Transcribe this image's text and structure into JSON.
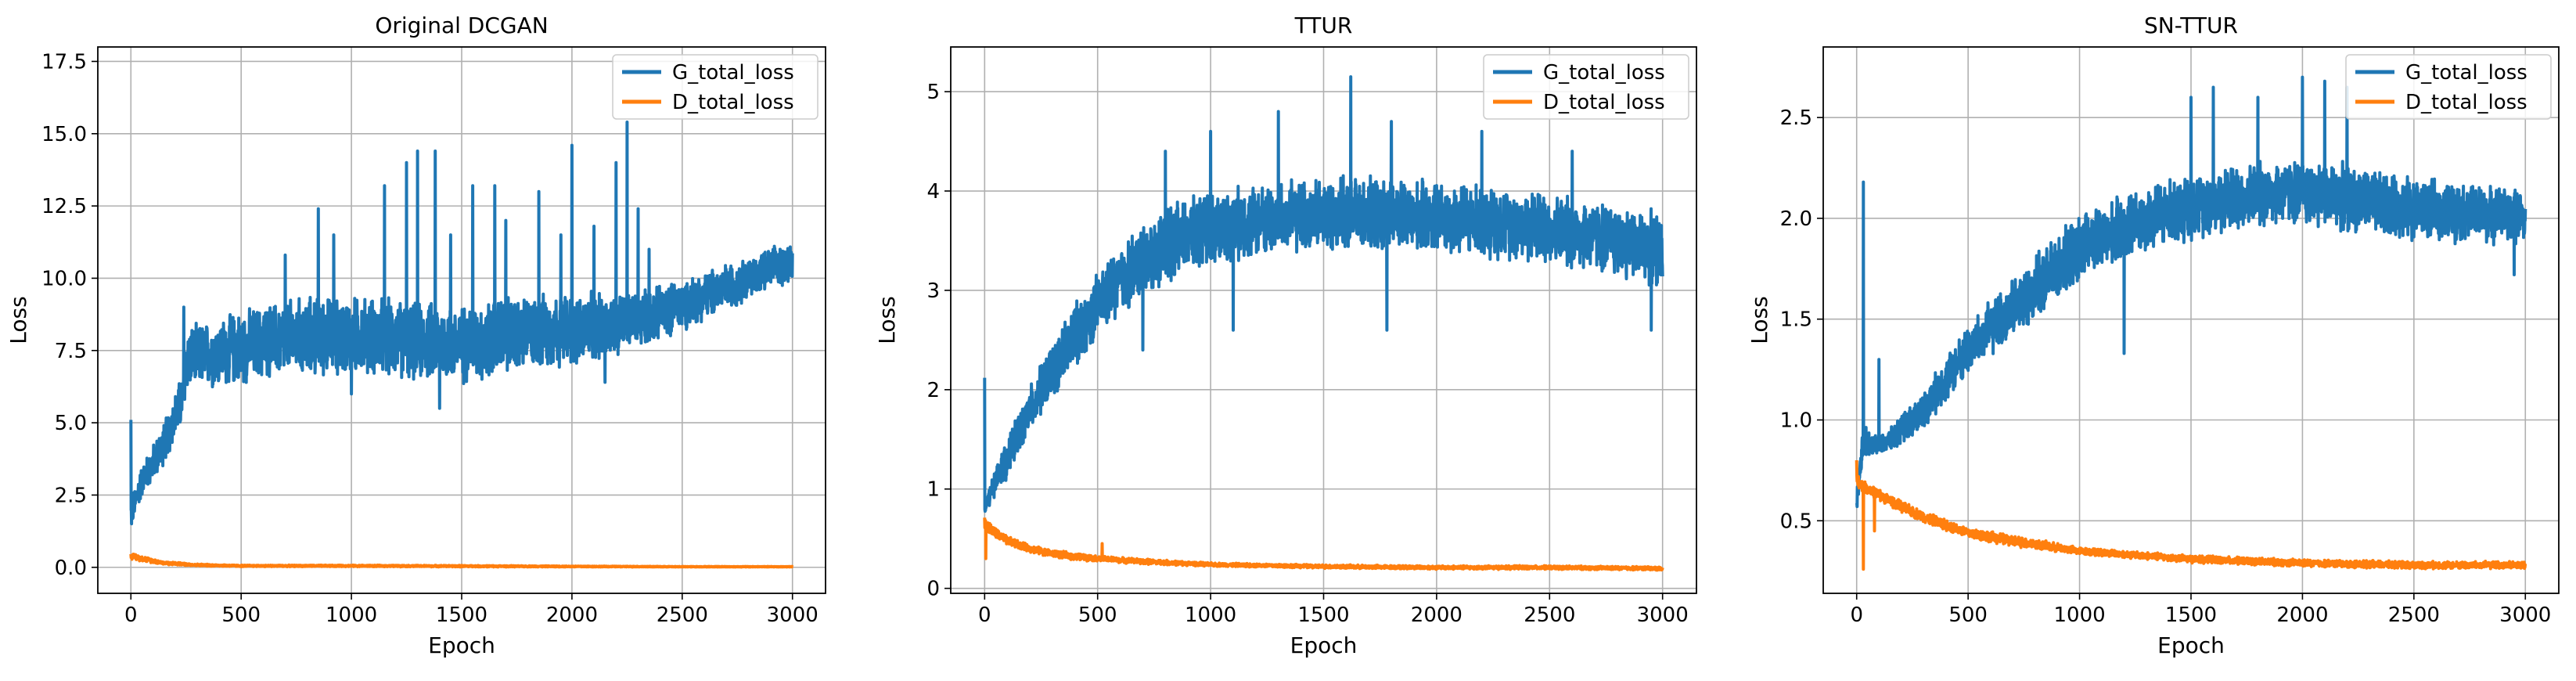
{
  "colors": {
    "g_series": "#1f77b4",
    "d_series": "#ff7f0e",
    "grid": "#b0b0b0",
    "axes": "#000000"
  },
  "chart_data": [
    {
      "type": "line",
      "title": "Original DCGAN",
      "xlabel": "Epoch",
      "ylabel": "Loss",
      "xlim": [
        -150,
        3150
      ],
      "ylim": [
        -0.9,
        18.0
      ],
      "xticks": [
        0,
        500,
        1000,
        1500,
        2000,
        2500,
        3000
      ],
      "xtick_labels": [
        "0",
        "500",
        "1000",
        "1500",
        "2000",
        "2500",
        "3000"
      ],
      "yticks": [
        0.0,
        2.5,
        5.0,
        7.5,
        10.0,
        12.5,
        15.0,
        17.5
      ],
      "ytick_labels": [
        "0.0",
        "2.5",
        "5.0",
        "7.5",
        "10.0",
        "12.5",
        "15.0",
        "17.5"
      ],
      "grid": true,
      "legend_position": "top-right",
      "series": [
        {
          "name": "G_total_loss",
          "color": "#1f77b4",
          "x": [
            0,
            50,
            100,
            150,
            200,
            240,
            250,
            300,
            400,
            500,
            600,
            700,
            800,
            900,
            1000,
            1100,
            1200,
            1300,
            1400,
            1500,
            1600,
            1700,
            1800,
            1900,
            2000,
            2100,
            2200,
            2300,
            2400,
            2500,
            2600,
            2700,
            2800,
            2900,
            3000
          ],
          "mean": [
            1.8,
            3.0,
            3.6,
            4.3,
            5.2,
            6.0,
            7.2,
            7.3,
            7.4,
            7.6,
            7.8,
            7.9,
            8.0,
            8.0,
            8.0,
            8.0,
            7.9,
            7.8,
            7.8,
            7.7,
            7.8,
            8.0,
            8.1,
            8.2,
            8.2,
            8.3,
            8.4,
            8.6,
            8.8,
            9.1,
            9.4,
            9.7,
            10.0,
            10.3,
            10.6
          ],
          "spread": [
            0.6,
            0.6,
            0.7,
            0.8,
            0.9,
            1.0,
            1.2,
            1.2,
            1.3,
            1.4,
            1.4,
            1.5,
            1.5,
            1.5,
            1.5,
            1.5,
            1.5,
            1.5,
            1.5,
            1.5,
            1.5,
            1.5,
            1.4,
            1.4,
            1.4,
            1.3,
            1.2,
            1.1,
            1.0,
            1.0,
            0.9,
            0.9,
            0.8,
            0.8,
            0.8
          ],
          "spikes": [
            [
              0,
              5.1
            ],
            [
              240,
              9.0
            ],
            [
              700,
              10.8
            ],
            [
              850,
              12.4
            ],
            [
              920,
              11.5
            ],
            [
              1150,
              13.2
            ],
            [
              1250,
              14.0
            ],
            [
              1300,
              14.4
            ],
            [
              1380,
              14.4
            ],
            [
              1450,
              11.5
            ],
            [
              1550,
              13.2
            ],
            [
              1650,
              13.2
            ],
            [
              1700,
              12.0
            ],
            [
              1850,
              13.0
            ],
            [
              1950,
              11.5
            ],
            [
              2000,
              14.6
            ],
            [
              2100,
              11.8
            ],
            [
              2150,
              13.2
            ],
            [
              2200,
              14.0
            ],
            [
              2250,
              15.4
            ],
            [
              2300,
              12.4
            ],
            [
              2350,
              11.0
            ]
          ],
          "dips": [
            [
              1000,
              6.0
            ],
            [
              1400,
              5.5
            ],
            [
              2150,
              6.4
            ]
          ]
        },
        {
          "name": "D_total_loss",
          "color": "#ff7f0e",
          "x": [
            0,
            50,
            150,
            300,
            500,
            1000,
            1500,
            2000,
            2500,
            3000
          ],
          "mean": [
            0.4,
            0.3,
            0.15,
            0.08,
            0.05,
            0.05,
            0.04,
            0.03,
            0.02,
            0.02
          ],
          "spread": [
            0.12,
            0.1,
            0.06,
            0.04,
            0.03,
            0.03,
            0.03,
            0.02,
            0.01,
            0.01
          ],
          "spikes": [
            [
              10,
              0.45
            ]
          ],
          "dips": []
        }
      ]
    },
    {
      "type": "line",
      "title": "TTUR",
      "xlabel": "Epoch",
      "ylabel": "Loss",
      "xlim": [
        -150,
        3150
      ],
      "ylim": [
        -0.05,
        5.45
      ],
      "xticks": [
        0,
        500,
        1000,
        1500,
        2000,
        2500,
        3000
      ],
      "xtick_labels": [
        "0",
        "500",
        "1000",
        "1500",
        "2000",
        "2500",
        "3000"
      ],
      "yticks": [
        0,
        1,
        2,
        3,
        4,
        5
      ],
      "ytick_labels": [
        "0",
        "1",
        "2",
        "3",
        "4",
        "5"
      ],
      "grid": true,
      "legend_position": "top-right",
      "series": [
        {
          "name": "G_total_loss",
          "color": "#1f77b4",
          "x": [
            0,
            50,
            100,
            200,
            300,
            400,
            500,
            600,
            700,
            800,
            900,
            1000,
            1100,
            1200,
            1300,
            1400,
            1500,
            1600,
            1700,
            1800,
            1900,
            2000,
            2100,
            2200,
            2300,
            2400,
            2500,
            2600,
            2700,
            2800,
            2900,
            3000
          ],
          "mean": [
            0.8,
            1.1,
            1.3,
            1.8,
            2.2,
            2.55,
            2.85,
            3.1,
            3.3,
            3.45,
            3.55,
            3.62,
            3.66,
            3.7,
            3.72,
            3.74,
            3.76,
            3.76,
            3.76,
            3.75,
            3.74,
            3.73,
            3.72,
            3.7,
            3.68,
            3.65,
            3.62,
            3.58,
            3.55,
            3.5,
            3.45,
            3.4
          ],
          "spread": [
            0.1,
            0.15,
            0.2,
            0.25,
            0.3,
            0.35,
            0.35,
            0.4,
            0.4,
            0.4,
            0.4,
            0.4,
            0.4,
            0.4,
            0.4,
            0.4,
            0.4,
            0.4,
            0.4,
            0.4,
            0.4,
            0.4,
            0.4,
            0.4,
            0.4,
            0.4,
            0.4,
            0.4,
            0.4,
            0.4,
            0.4,
            0.4
          ],
          "spikes": [
            [
              0,
              2.12
            ],
            [
              800,
              4.4
            ],
            [
              1000,
              4.6
            ],
            [
              1300,
              4.8
            ],
            [
              1620,
              5.15
            ],
            [
              1800,
              4.7
            ],
            [
              2200,
              4.6
            ],
            [
              2600,
              4.4
            ]
          ],
          "dips": [
            [
              700,
              2.4
            ],
            [
              1100,
              2.6
            ],
            [
              1780,
              2.6
            ],
            [
              2950,
              2.6
            ]
          ]
        },
        {
          "name": "D_total_loss",
          "color": "#ff7f0e",
          "x": [
            0,
            50,
            100,
            200,
            300,
            400,
            500,
            700,
            1000,
            1500,
            2000,
            2500,
            3000
          ],
          "mean": [
            0.65,
            0.55,
            0.48,
            0.4,
            0.35,
            0.32,
            0.3,
            0.27,
            0.24,
            0.22,
            0.21,
            0.21,
            0.2
          ],
          "spread": [
            0.08,
            0.06,
            0.05,
            0.04,
            0.04,
            0.04,
            0.03,
            0.03,
            0.02,
            0.02,
            0.02,
            0.02,
            0.02
          ],
          "spikes": [
            [
              5,
              0.72
            ],
            [
              520,
              0.45
            ]
          ],
          "dips": [
            [
              5,
              0.3
            ]
          ]
        }
      ]
    },
    {
      "type": "line",
      "title": "SN-TTUR",
      "xlabel": "Epoch",
      "ylabel": "Loss",
      "xlim": [
        -150,
        3150
      ],
      "ylim": [
        0.14,
        2.85
      ],
      "xticks": [
        0,
        500,
        1000,
        1500,
        2000,
        2500,
        3000
      ],
      "xtick_labels": [
        "0",
        "500",
        "1000",
        "1500",
        "2000",
        "2500",
        "3000"
      ],
      "yticks": [
        0.5,
        1.0,
        1.5,
        2.0,
        2.5
      ],
      "ytick_labels": [
        "0.5",
        "1.0",
        "1.5",
        "2.0",
        "2.5"
      ],
      "grid": true,
      "legend_position": "top-right",
      "series": [
        {
          "name": "G_total_loss",
          "color": "#1f77b4",
          "x": [
            0,
            30,
            60,
            100,
            150,
            200,
            300,
            400,
            500,
            600,
            700,
            800,
            900,
            1000,
            1100,
            1200,
            1300,
            1400,
            1500,
            1600,
            1700,
            1800,
            1900,
            2000,
            2100,
            2200,
            2300,
            2400,
            2500,
            2600,
            2700,
            2800,
            2900,
            3000
          ],
          "mean": [
            0.6,
            0.9,
            0.88,
            0.87,
            0.9,
            0.95,
            1.05,
            1.2,
            1.35,
            1.45,
            1.55,
            1.65,
            1.75,
            1.85,
            1.9,
            1.95,
            2.0,
            2.03,
            2.06,
            2.08,
            2.1,
            2.12,
            2.13,
            2.13,
            2.12,
            2.1,
            2.08,
            2.06,
            2.05,
            2.04,
            2.03,
            2.02,
            2.02,
            2.0
          ],
          "spread": [
            0.05,
            0.1,
            0.05,
            0.05,
            0.06,
            0.08,
            0.1,
            0.12,
            0.14,
            0.15,
            0.16,
            0.17,
            0.18,
            0.18,
            0.18,
            0.18,
            0.18,
            0.18,
            0.18,
            0.18,
            0.18,
            0.18,
            0.18,
            0.18,
            0.18,
            0.18,
            0.18,
            0.17,
            0.17,
            0.16,
            0.16,
            0.16,
            0.15,
            0.15
          ],
          "spikes": [
            [
              30,
              2.18
            ],
            [
              100,
              1.3
            ],
            [
              1500,
              2.6
            ],
            [
              1600,
              2.65
            ],
            [
              1800,
              2.6
            ],
            [
              2000,
              2.7
            ],
            [
              2100,
              2.68
            ],
            [
              2200,
              2.65
            ]
          ],
          "dips": [
            [
              1200,
              1.33
            ],
            [
              2950,
              1.72
            ]
          ]
        },
        {
          "name": "D_total_loss",
          "color": "#ff7f0e",
          "x": [
            0,
            30,
            100,
            200,
            300,
            400,
            500,
            700,
            1000,
            1500,
            2000,
            2500,
            3000
          ],
          "mean": [
            0.7,
            0.67,
            0.63,
            0.57,
            0.52,
            0.48,
            0.44,
            0.4,
            0.35,
            0.31,
            0.29,
            0.28,
            0.28
          ],
          "spread": [
            0.04,
            0.03,
            0.03,
            0.03,
            0.03,
            0.03,
            0.03,
            0.03,
            0.02,
            0.02,
            0.02,
            0.02,
            0.02
          ],
          "spikes": [
            [
              0,
              0.8
            ]
          ],
          "dips": [
            [
              30,
              0.26
            ],
            [
              80,
              0.45
            ]
          ]
        }
      ]
    }
  ]
}
